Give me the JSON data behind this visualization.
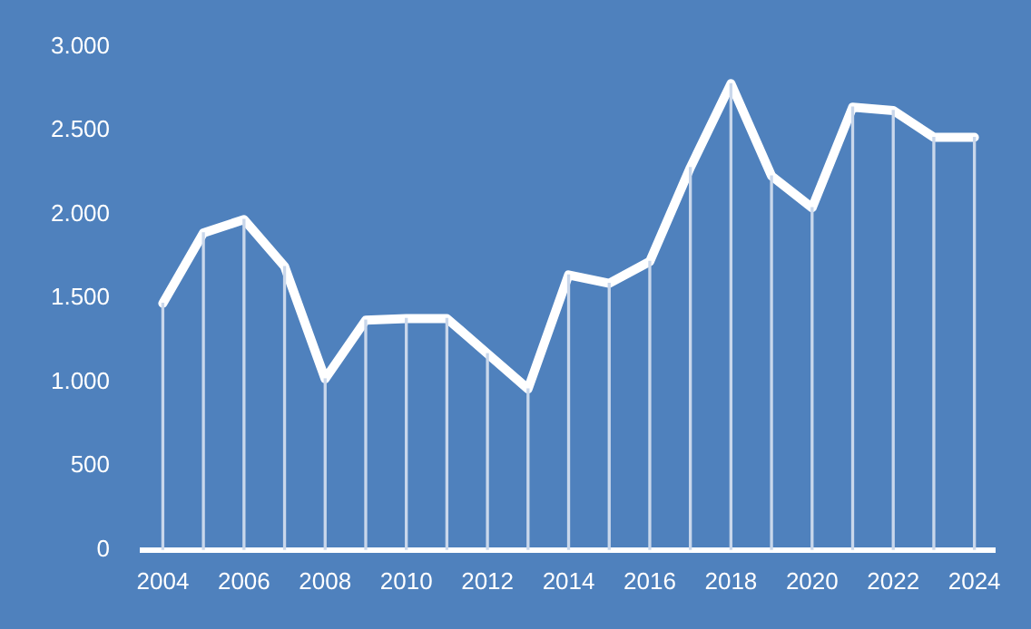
{
  "chart_data": {
    "type": "line",
    "categories": [
      "2004",
      null,
      "2006",
      null,
      "2008",
      null,
      "2010",
      null,
      "2012",
      null,
      "2014",
      null,
      "2016",
      null,
      "2018",
      null,
      "2020",
      null,
      "2022",
      null,
      "2024"
    ],
    "series": [
      {
        "type": "bar",
        "color": "#c9d7eb",
        "values": [
          1470,
          1890,
          1970,
          1690,
          1020,
          1370,
          1380,
          1380,
          1170,
          960,
          1640,
          1590,
          1720,
          2280,
          2780,
          2230,
          2040,
          2640,
          2620,
          2460,
          2460
        ]
      },
      {
        "color": "#ffffff",
        "values": [
          1470,
          1890,
          1970,
          1690,
          1020,
          1370,
          1380,
          1380,
          1170,
          960,
          1640,
          1590,
          1720,
          2280,
          2780,
          2230,
          2040,
          2640,
          2620,
          2460,
          2460
        ]
      }
    ],
    "ylim": [
      0,
      3000
    ],
    "yticks": [
      {
        "value": 0,
        "label": "0"
      },
      {
        "value": 500,
        "label": "500"
      },
      {
        "value": 1000,
        "label": "1.000"
      },
      {
        "value": 1500,
        "label": "1.500"
      },
      {
        "value": 2000,
        "label": "2.000"
      },
      {
        "value": 2500,
        "label": "2.500"
      },
      {
        "value": 3000,
        "label": "3.000"
      }
    ],
    "grid": false,
    "legend": false,
    "marker": "none",
    "line_style": "solid"
  }
}
